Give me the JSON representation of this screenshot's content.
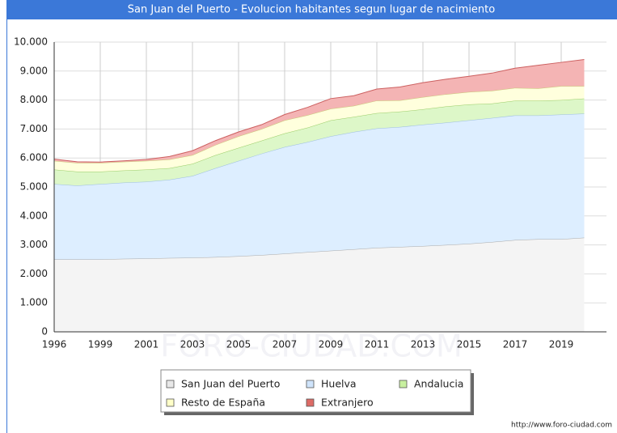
{
  "chart_data": {
    "type": "area",
    "stacked": true,
    "title": "San Juan del Puerto - Evolucion habitantes segun lugar de nacimiento",
    "watermark": "FORO-CIUDAD.COM",
    "source": "http://www.foro-ciudad.com",
    "categories": [
      "1996",
      null,
      "1999",
      null,
      "2001",
      null,
      "2003",
      null,
      "2005",
      null,
      "2007",
      null,
      "2009",
      null,
      "2011",
      null,
      "2013",
      null,
      "2015",
      null,
      "2017",
      null,
      "2019",
      null
    ],
    "series": [
      {
        "name": "San Juan del Puerto",
        "color": "#f4f4f4",
        "line": "#a8a8a8",
        "legend_color": "#e8e8e8",
        "values": [
          2500,
          2500,
          2500,
          2520,
          2530,
          2550,
          2560,
          2580,
          2610,
          2650,
          2700,
          2750,
          2800,
          2850,
          2900,
          2930,
          2960,
          3000,
          3040,
          3100,
          3170,
          3200,
          3200,
          3250
        ]
      },
      {
        "name": "Huelva",
        "color": "#ddeeff",
        "line": "#9cbde0",
        "legend_color": "#cfe4fb",
        "values": [
          2600,
          2550,
          2600,
          2630,
          2650,
          2700,
          2820,
          3070,
          3290,
          3500,
          3680,
          3800,
          3950,
          4050,
          4120,
          4140,
          4190,
          4220,
          4260,
          4280,
          4300,
          4270,
          4300,
          4280
        ]
      },
      {
        "name": "Andalucia",
        "color": "#ddf7c8",
        "line": "#99cc66",
        "legend_color": "#c8f0a0",
        "values": [
          500,
          480,
          430,
          420,
          420,
          400,
          420,
          450,
          450,
          450,
          470,
          500,
          550,
          520,
          530,
          530,
          530,
          560,
          550,
          500,
          510,
          510,
          500,
          520
        ]
      },
      {
        "name": "Resto de España",
        "color": "#ffffdd",
        "line": "#c8c877",
        "legend_color": "#ffffc8",
        "values": [
          300,
          300,
          300,
          300,
          300,
          300,
          300,
          350,
          400,
          400,
          450,
          430,
          400,
          380,
          430,
          390,
          420,
          420,
          430,
          440,
          440,
          420,
          480,
          430
        ]
      },
      {
        "name": "Extranjero",
        "color": "#f4b4b4",
        "line": "#cc6060",
        "legend_color": "#dd6b66",
        "values": [
          60,
          40,
          30,
          30,
          50,
          100,
          150,
          150,
          150,
          150,
          200,
          270,
          350,
          350,
          400,
          460,
          500,
          520,
          540,
          610,
          680,
          800,
          820,
          920
        ]
      }
    ],
    "ylim": [
      0,
      10000
    ],
    "yticks": [
      0,
      {
        "value": 1000,
        "label": "1.000"
      },
      {
        "value": 2000,
        "label": "2.000"
      },
      {
        "value": 3000,
        "label": "3.000"
      },
      {
        "value": 4000,
        "label": "4.000"
      },
      {
        "value": 5000,
        "label": "5.000"
      },
      {
        "value": 6000,
        "label": "6.000"
      },
      {
        "value": 7000,
        "label": "7.000"
      },
      {
        "value": 8000,
        "label": "8.000"
      },
      {
        "value": 9000,
        "label": "9.000"
      },
      {
        "value": 10000,
        "label": "10.000"
      }
    ],
    "grid": true
  }
}
